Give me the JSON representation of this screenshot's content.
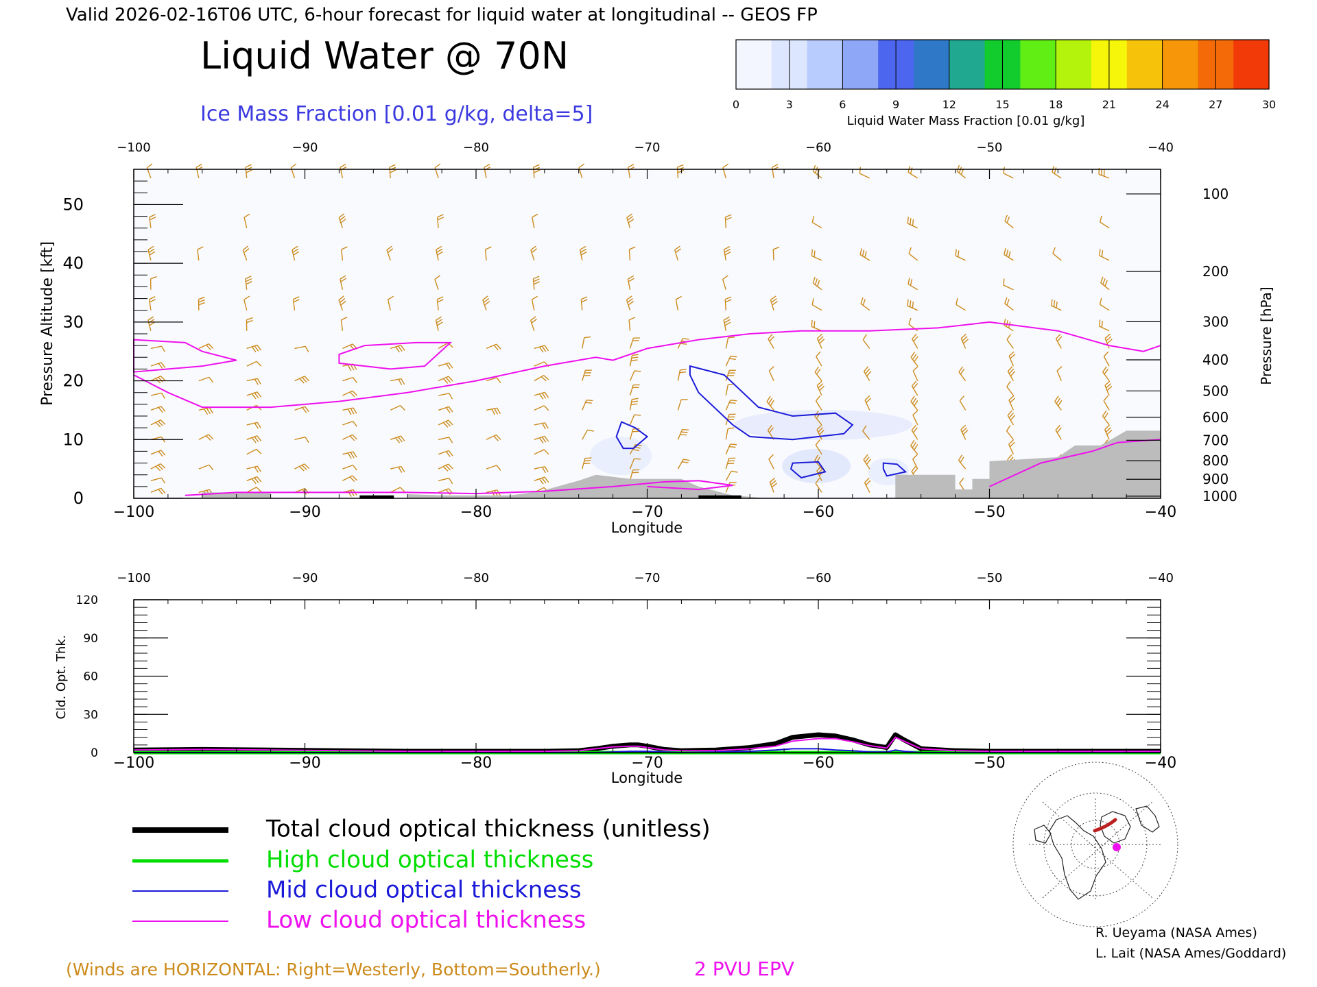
{
  "header": {
    "valid_line": "Valid 2026-02-16T06 UTC, 6-hour forecast for liquid water at longitudinal -- GEOS FP",
    "title": "Liquid Water @ 70N",
    "subtitle": "Ice Mass Fraction [0.01 g/kg, delta=5]"
  },
  "colorbar": {
    "label": "Liquid Water Mass Fraction [0.01 g/kg]",
    "ticks": [
      "0",
      "3",
      "6",
      "9",
      "12",
      "15",
      "18",
      "21",
      "24",
      "27",
      "30"
    ],
    "colors": [
      "#f4f6ff",
      "#dde6ff",
      "#b8cdfd",
      "#8ea8f7",
      "#4c66f0",
      "#2f78c8",
      "#20a890",
      "#12cc2e",
      "#60ee14",
      "#b4f40c",
      "#f6f60a",
      "#f6c20a",
      "#f69608",
      "#f56a08",
      "#f23a08"
    ]
  },
  "chart_data": [
    {
      "type": "heatmap",
      "title": "Liquid Water @ 70N",
      "xlabel": "Longitude",
      "ylabel": "Pressure Altitude [kft]",
      "ylabel_right": "Pressure [hPa]",
      "xlim": [
        -100,
        -40
      ],
      "ylim": [
        0,
        56
      ],
      "x_ticks": [
        "-100",
        "-90",
        "-80",
        "-70",
        "-60",
        "-50",
        "-40"
      ],
      "y_ticks": [
        "0",
        "10",
        "20",
        "30",
        "40",
        "50"
      ],
      "pressure_ticks": [
        "100",
        "200",
        "300",
        "400",
        "500",
        "600",
        "700",
        "800",
        "900",
        "1000"
      ],
      "wind_barb_levels_kft": [
        54.5,
        46,
        40.5,
        35.5,
        32,
        28.5,
        25.5,
        22.5,
        20,
        17.5,
        15,
        12.5,
        10,
        7.5,
        5,
        3,
        1
      ],
      "ice_contours": [
        {
          "name": "ice-5-east",
          "points": [
            [
              -67.5,
              22.5
            ],
            [
              -65.5,
              21
            ],
            [
              -63.5,
              15.5
            ],
            [
              -61.5,
              14
            ],
            [
              -59,
              14.5
            ],
            [
              -58,
              12.5
            ],
            [
              -58.5,
              11
            ],
            [
              -61.5,
              10
            ],
            [
              -64,
              10.5
            ],
            [
              -65,
              12.5
            ],
            [
              -67,
              18
            ],
            [
              -67.5,
              21
            ]
          ]
        },
        {
          "name": "ice-5-west",
          "points": [
            [
              -71.5,
              13
            ],
            [
              -70.7,
              12
            ],
            [
              -70,
              10.5
            ],
            [
              -70.8,
              8.5
            ],
            [
              -71.4,
              8.5
            ],
            [
              -71.8,
              10.5
            ]
          ]
        },
        {
          "name": "ice-5-low-1",
          "points": [
            [
              -61.5,
              6
            ],
            [
              -60,
              6.2
            ],
            [
              -59.6,
              4.5
            ],
            [
              -61,
              3.5
            ],
            [
              -61.6,
              5
            ]
          ]
        },
        {
          "name": "ice-5-low-2",
          "points": [
            [
              -56.2,
              6
            ],
            [
              -55.4,
              5.8
            ],
            [
              -54.9,
              4.5
            ],
            [
              -56,
              3.8
            ],
            [
              -56.2,
              5
            ]
          ]
        }
      ],
      "epv_2pvu": [
        {
          "name": "epv-main",
          "points": [
            [
              -100,
              21
            ],
            [
              -98,
              18
            ],
            [
              -96,
              15.5
            ],
            [
              -92,
              15.5
            ],
            [
              -88,
              16.5
            ],
            [
              -84,
              18
            ],
            [
              -80,
              20
            ],
            [
              -76,
              22.5
            ],
            [
              -73,
              24
            ],
            [
              -72,
              23.5
            ],
            [
              -70,
              25.5
            ],
            [
              -67,
              27
            ],
            [
              -64,
              28
            ],
            [
              -61,
              28.5
            ],
            [
              -57,
              28.5
            ],
            [
              -53,
              29
            ],
            [
              -50,
              30
            ],
            [
              -46,
              28.5
            ],
            [
              -43,
              26
            ],
            [
              -41,
              25
            ],
            [
              -40,
              26
            ]
          ]
        },
        {
          "name": "epv-west-loop",
          "points": [
            [
              -100,
              27
            ],
            [
              -97,
              26.5
            ],
            [
              -96,
              25
            ],
            [
              -94,
              23.5
            ],
            [
              -96,
              22.5
            ],
            [
              -98,
              22
            ],
            [
              -100,
              21.5
            ]
          ]
        },
        {
          "name": "epv-mid-loop",
          "points": [
            [
              -88,
              24.5
            ],
            [
              -86.5,
              26
            ],
            [
              -83.5,
              26.5
            ],
            [
              -81.5,
              26.5
            ],
            [
              -83,
              22.5
            ],
            [
              -85,
              22
            ],
            [
              -88,
              23
            ]
          ]
        },
        {
          "name": "epv-surface",
          "points": [
            [
              -97,
              0.5
            ],
            [
              -94,
              1
            ],
            [
              -90,
              1
            ],
            [
              -84,
              1
            ],
            [
              -80,
              0.8
            ],
            [
              -76,
              1.2
            ],
            [
              -72,
              2
            ],
            [
              -69,
              2.8
            ],
            [
              -67,
              3
            ],
            [
              -65,
              2.2
            ],
            [
              -67,
              1.5
            ],
            [
              -70,
              2
            ]
          ]
        },
        {
          "name": "epv-east-low",
          "points": [
            [
              -50,
              2
            ],
            [
              -47,
              6
            ],
            [
              -44,
              8
            ],
            [
              -42.5,
              9.5
            ],
            [
              -40,
              10
            ]
          ]
        }
      ],
      "terrain": [
        [
          -96,
          0
        ],
        [
          -96,
          1
        ],
        [
          -92,
          1
        ],
        [
          -92,
          0
        ],
        [
          -84,
          0
        ],
        [
          -84,
          0.7
        ],
        [
          -82,
          0.5
        ],
        [
          -78,
          0.5
        ],
        [
          -77,
          0.9
        ],
        [
          -76,
          1.4
        ],
        [
          -74,
          3
        ],
        [
          -73,
          4
        ],
        [
          -71,
          3.3
        ],
        [
          -68,
          3.3
        ],
        [
          -67,
          2
        ],
        [
          -65,
          0.5
        ],
        [
          -63,
          0
        ],
        [
          -55.5,
          0
        ],
        [
          -55.5,
          4
        ],
        [
          -52,
          4
        ],
        [
          -52,
          1.5
        ],
        [
          -51,
          1.5
        ],
        [
          -51,
          3.3
        ],
        [
          -50,
          3.3
        ],
        [
          -50,
          6.3
        ],
        [
          -46,
          7
        ],
        [
          -45,
          9
        ],
        [
          -43.5,
          9
        ],
        [
          -42,
          11.5
        ],
        [
          -40,
          11.5
        ],
        [
          -40,
          0
        ]
      ]
    },
    {
      "type": "line",
      "xlabel": "Longitude",
      "ylabel": "Cld. Opt. Thk.",
      "xlim": [
        -100,
        -40
      ],
      "ylim": [
        0,
        120
      ],
      "x_ticks": [
        "-100",
        "-90",
        "-80",
        "-70",
        "-60",
        "-50",
        "-40"
      ],
      "y_ticks": [
        "0",
        "30",
        "60",
        "90",
        "120"
      ],
      "x": [
        -100,
        -96,
        -92,
        -88,
        -84,
        -80,
        -76,
        -74,
        -73,
        -72,
        -71,
        -70.5,
        -70,
        -69,
        -68,
        -66,
        -64,
        -62.5,
        -61.5,
        -60,
        -59,
        -58,
        -57,
        -56,
        -55.5,
        -55,
        -54,
        -52,
        -50,
        -46,
        -43,
        -40
      ],
      "series": [
        {
          "name": "Total cloud optical thickness (unitless)",
          "color": "#000000",
          "values": [
            2,
            2.5,
            2,
            1.5,
            1,
            1,
            1,
            1.5,
            3,
            5,
            6,
            6,
            5,
            2.5,
            1.5,
            2,
            4,
            7,
            12,
            14,
            13,
            10,
            6,
            4,
            14,
            10,
            3,
            1.5,
            1,
            1,
            1,
            1
          ]
        },
        {
          "name": "High cloud optical thickness",
          "color": "#00dd00",
          "values": [
            0,
            0,
            0,
            0,
            0,
            0,
            0,
            0,
            0,
            0,
            0,
            0,
            0,
            0,
            0,
            0,
            0,
            0,
            0,
            0,
            0,
            0,
            0,
            0,
            0,
            0,
            0,
            0,
            0,
            0,
            0,
            0
          ]
        },
        {
          "name": "Mid cloud optical thickness",
          "color": "#1a1ad8",
          "values": [
            0,
            0,
            0,
            0,
            0,
            0,
            0,
            0,
            0,
            0.5,
            1,
            1,
            1,
            0.5,
            0,
            0.5,
            1,
            2,
            3,
            3,
            2,
            1.5,
            0.5,
            0.5,
            2,
            1,
            0,
            0,
            0,
            0,
            0,
            0
          ]
        },
        {
          "name": "Low cloud optical thickness",
          "color": "#ee10ee",
          "values": [
            2,
            2.5,
            2,
            1.5,
            1,
            1,
            1,
            1.5,
            3,
            4.5,
            5,
            5,
            4,
            2,
            1.5,
            1.5,
            3,
            5,
            9,
            11,
            11,
            8.5,
            5.5,
            3.5,
            12,
            9,
            3,
            1.5,
            1,
            1,
            1,
            1
          ]
        }
      ]
    }
  ],
  "legend": {
    "total": "Total cloud optical thickness (unitless)",
    "high": "High cloud optical thickness",
    "mid": "Mid cloud optical thickness",
    "low": "Low cloud optical thickness"
  },
  "footer": {
    "winds_note": "(Winds are HORIZONTAL: Right=Westerly, Bottom=Southerly.)",
    "epv_label": "2 PVU EPV",
    "credit1": "R. Ueyama (NASA Ames)",
    "credit2": "L. Lait (NASA Ames/Goddard)"
  },
  "colors": {
    "wind": "#cc8a1a",
    "ice": "#1a1ad8",
    "epv": "#ee10ee",
    "terrain": "#bcbcbc",
    "title": "#000000",
    "subtitle": "#3a3ae0",
    "high": "#00dd00",
    "mid": "#1a1ad8",
    "low": "#ee10ee",
    "footer": "#cc8a1a"
  }
}
